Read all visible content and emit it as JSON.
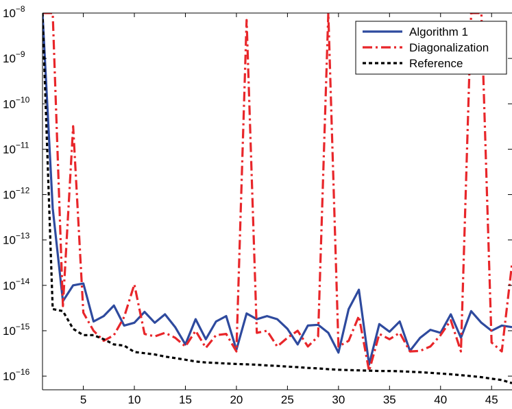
{
  "chart_data": {
    "type": "line",
    "title": "",
    "xlabel": "",
    "ylabel": "",
    "y_scale": "log",
    "xlim": [
      1,
      47
    ],
    "ylim": [
      5e-17,
      1e-08
    ],
    "grid": false,
    "legend_placement": "top-right",
    "x_ticks": [
      5,
      10,
      15,
      20,
      25,
      30,
      35,
      40,
      45
    ],
    "y_ticks": [
      {
        "value": 1e-16,
        "base": "10",
        "exp": "−16"
      },
      {
        "value": 1e-15,
        "base": "10",
        "exp": "−15"
      },
      {
        "value": 1e-14,
        "base": "10",
        "exp": "−14"
      },
      {
        "value": 1e-13,
        "base": "10",
        "exp": "−13"
      },
      {
        "value": 1e-12,
        "base": "10",
        "exp": "−12"
      },
      {
        "value": 1e-11,
        "base": "10",
        "exp": "−11"
      },
      {
        "value": 1e-10,
        "base": "10",
        "exp": "−10"
      },
      {
        "value": 1e-09,
        "base": "10",
        "exp": "−9"
      },
      {
        "value": 1e-08,
        "base": "10",
        "exp": "−8"
      }
    ],
    "series": [
      {
        "name": "Algorithm 1",
        "color": "#2e4a9e",
        "dash": "solid",
        "x": [
          1,
          2,
          3,
          4,
          5,
          6,
          7,
          8,
          9,
          10,
          11,
          12,
          13,
          14,
          15,
          16,
          17,
          18,
          19,
          20,
          21,
          22,
          23,
          24,
          25,
          26,
          27,
          28,
          29,
          30,
          31,
          32,
          33,
          34,
          35,
          36,
          37,
          38,
          39,
          40,
          41,
          42,
          43,
          44,
          45,
          46,
          47
        ],
        "y": [
          1e-08,
          5e-13,
          4.5e-15,
          1e-14,
          1.1e-14,
          1.6e-15,
          2.1e-15,
          3.6e-15,
          1.3e-15,
          1.5e-15,
          2.6e-15,
          1.5e-15,
          2.3e-15,
          1.2e-15,
          5e-16,
          1.8e-15,
          6.5e-16,
          1.6e-15,
          2.1e-15,
          3.8e-16,
          2.4e-15,
          1.8e-15,
          2.1e-15,
          1.8e-15,
          1.1e-15,
          5e-16,
          1.3e-15,
          1.35e-15,
          9e-16,
          3.3e-16,
          3e-15,
          8e-15,
          1.8e-16,
          1.4e-15,
          9.5e-16,
          1.6e-15,
          3.6e-16,
          7e-16,
          1.05e-15,
          9e-16,
          2.3e-15,
          7e-16,
          2.7e-15,
          1.5e-15,
          1e-15,
          1.3e-15,
          1.2e-15
        ]
      },
      {
        "name": "Diagonalization",
        "color": "#e8262a",
        "dash": "dashdot",
        "x": [
          1,
          2,
          3,
          4,
          5,
          6,
          7,
          8,
          9,
          10,
          11,
          12,
          13,
          14,
          15,
          16,
          17,
          18,
          19,
          20,
          21,
          22,
          23,
          24,
          25,
          26,
          27,
          28,
          29,
          30,
          31,
          32,
          33,
          34,
          35,
          36,
          37,
          38,
          39,
          40,
          41,
          42,
          43,
          44,
          45,
          46,
          47
        ],
        "y": [
          1e-08,
          1e-08,
          3.5e-15,
          3.2e-11,
          2.5e-15,
          1e-15,
          6e-16,
          8e-16,
          2e-15,
          1.05e-14,
          8.5e-16,
          7.5e-16,
          9e-16,
          7e-16,
          4.5e-16,
          1e-15,
          4.2e-16,
          8e-16,
          8.5e-16,
          3.5e-16,
          7e-09,
          9e-16,
          1e-15,
          4.5e-16,
          7e-16,
          1e-15,
          4.5e-16,
          7.5e-16,
          1e-08,
          4.5e-16,
          6e-16,
          2.1e-15,
          1.3e-16,
          8.5e-16,
          6.5e-16,
          9e-16,
          3.5e-16,
          3.6e-16,
          4.5e-16,
          8e-16,
          1.7e-15,
          3.5e-16,
          1e-08,
          1e-08,
          5.5e-16,
          3.5e-16,
          3e-14
        ]
      },
      {
        "name": "Reference",
        "color": "#000000",
        "dash": "dotted",
        "x": [
          1,
          2,
          3,
          4,
          5,
          6,
          7,
          8,
          9,
          10,
          11,
          12,
          13,
          14,
          15,
          16,
          17,
          18,
          19,
          20,
          21,
          22,
          23,
          24,
          25,
          26,
          27,
          28,
          29,
          30,
          31,
          32,
          33,
          34,
          35,
          36,
          37,
          38,
          39,
          40,
          41,
          42,
          43,
          44,
          45,
          46,
          47
        ],
        "y": [
          1e-08,
          3e-15,
          2.7e-15,
          1.1e-15,
          8e-16,
          8e-16,
          6.5e-16,
          5e-16,
          4.7e-16,
          3.4e-16,
          3.2e-16,
          3e-16,
          2.7e-16,
          2.5e-16,
          2.3e-16,
          2.1e-16,
          2e-16,
          1.95e-16,
          1.9e-16,
          1.85e-16,
          1.82e-16,
          1.78e-16,
          1.72e-16,
          1.68e-16,
          1.62e-16,
          1.58e-16,
          1.52e-16,
          1.48e-16,
          1.42e-16,
          1.38e-16,
          1.36e-16,
          1.34e-16,
          1.32e-16,
          1.3e-16,
          1.3e-16,
          1.28e-16,
          1.25e-16,
          1.22e-16,
          1.18e-16,
          1.14e-16,
          1.1e-16,
          1.05e-16,
          1e-16,
          9.5e-17,
          8.8e-17,
          8.2e-17,
          7e-17
        ]
      }
    ]
  }
}
